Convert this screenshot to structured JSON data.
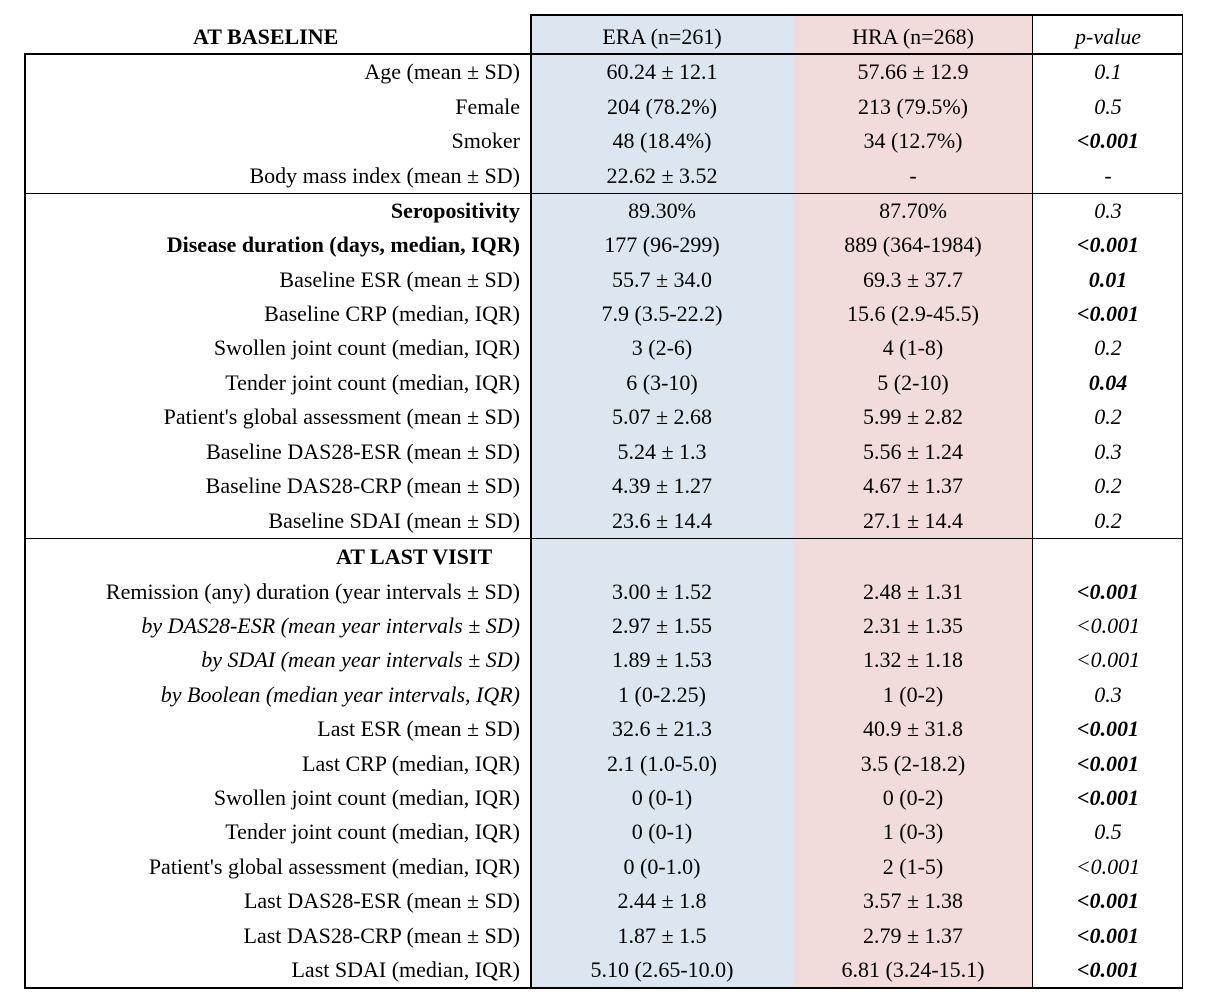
{
  "header": {
    "section": "AT BASELINE",
    "era": "ERA (n=261)",
    "hra": "HRA (n=268)",
    "pvalue": "p-value"
  },
  "rows": [
    {
      "label": "Age (mean ± SD)",
      "era": "60.24 ± 12.1",
      "hra": "57.66 ± 12.9",
      "p": "0.1",
      "p_bold": false
    },
    {
      "label": "Female",
      "era": "204 (78.2%)",
      "hra": "213 (79.5%)",
      "p": "0.5",
      "p_bold": false
    },
    {
      "label": "Smoker",
      "era": "48 (18.4%)",
      "hra": "34 (12.7%)",
      "p": "<0.001",
      "p_bold": true
    },
    {
      "label": "Body mass index (mean ± SD)",
      "era": "22.62 ± 3.52",
      "hra": "-",
      "p": "-",
      "p_bold": false
    },
    {
      "label": "Seropositivity",
      "label_bold": true,
      "era": "89.30%",
      "hra": "87.70%",
      "p": "0.3",
      "p_bold": false
    },
    {
      "label": "Disease duration (days, median, IQR)",
      "label_bold": true,
      "era": "177 (96-299)",
      "hra": "889 (364-1984)",
      "p": "<0.001",
      "p_bold": true
    },
    {
      "label": "Baseline ESR  (mean ± SD)",
      "era": "55.7 ± 34.0",
      "hra": "69.3 ± 37.7",
      "p": "0.01",
      "p_bold": true
    },
    {
      "label": "Baseline CRP (median, IQR)",
      "era": "7.9 (3.5-22.2)",
      "hra": "15.6 (2.9-45.5)",
      "p": "<0.001",
      "p_bold": true
    },
    {
      "label": "Swollen joint count (median, IQR)",
      "era": "3 (2-6)",
      "hra": "4 (1-8)",
      "p": "0.2",
      "p_bold": false
    },
    {
      "label": "Tender joint count (median, IQR)",
      "era": "6 (3-10)",
      "hra": "5 (2-10)",
      "p": "0.04",
      "p_bold": true
    },
    {
      "label": "Patient's global assessment (mean ± SD)",
      "era": "5.07 ± 2.68",
      "hra": "5.99 ± 2.82",
      "p": "0.2",
      "p_bold": false
    },
    {
      "label": "Baseline DAS28-ESR (mean ± SD)",
      "era": "5.24 ± 1.3",
      "hra": "5.56 ± 1.24",
      "p": "0.3",
      "p_bold": false
    },
    {
      "label": "Baseline DAS28-CRP (mean ± SD)",
      "era": "4.39 ± 1.27",
      "hra": "4.67 ± 1.37",
      "p": "0.2",
      "p_bold": false
    },
    {
      "label": "Baseline SDAI (mean ± SD)",
      "era": "23.6 ± 14.4",
      "hra": "27.1 ± 14.4",
      "p": "0.2",
      "p_bold": false
    },
    {
      "label": "AT LAST VISIT",
      "label_bold": true,
      "era": "",
      "hra": "",
      "p": "",
      "p_bold": false
    },
    {
      "label": "Remission (any) duration (year intervals ± SD)",
      "era": "3.00 ± 1.52",
      "hra": "2.48 ± 1.31",
      "p": "<0.001",
      "p_bold": true
    },
    {
      "label": "by DAS28-ESR (mean year intervals ± SD)",
      "label_italic": true,
      "era": "2.97 ± 1.55",
      "hra": "2.31 ± 1.35",
      "p": "<0.001",
      "p_bold": false
    },
    {
      "label": "by SDAI (mean year intervals ± SD)",
      "label_italic": true,
      "era": "1.89 ± 1.53",
      "hra": "1.32 ± 1.18",
      "p": "<0.001",
      "p_bold": false
    },
    {
      "label": "by Boolean (median year intervals, IQR)",
      "label_italic": true,
      "era": "1 (0-2.25)",
      "hra": "1 (0-2)",
      "p": "0.3",
      "p_bold": false
    },
    {
      "label": "Last ESR  (mean ± SD)",
      "era": "32.6 ± 21.3",
      "hra": "40.9 ± 31.8",
      "p": "<0.001",
      "p_bold": true
    },
    {
      "label": "Last CRP (median, IQR)",
      "era": "2.1 (1.0-5.0)",
      "hra": "3.5 (2-18.2)",
      "p": "<0.001",
      "p_bold": true
    },
    {
      "label": "Swollen joint count (median, IQR)",
      "era": "0 (0-1)",
      "hra": "0 (0-2)",
      "p": "<0.001",
      "p_bold": true
    },
    {
      "label": "Tender joint count (median, IQR)",
      "era": "0 (0-1)",
      "hra": "1 (0-3)",
      "p": "0.5",
      "p_bold": false
    },
    {
      "label": "Patient's global assessment (median, IQR)",
      "era": "0 (0-1.0)",
      "hra": "2 (1-5)",
      "p": "<0.001",
      "p_bold": false
    },
    {
      "label": "Last DAS28-ESR (mean ± SD)",
      "era": "2.44 ± 1.8",
      "hra": "3.57 ± 1.38",
      "p": "<0.001",
      "p_bold": true
    },
    {
      "label": "Last DAS28-CRP (mean ± SD)",
      "era": "1.87 ± 1.5",
      "hra": "2.79 ± 1.37",
      "p": "<0.001",
      "p_bold": true
    },
    {
      "label": "Last SDAI (median, IQR)",
      "era": "5.10 (2.65-10.0)",
      "hra": "6.81 (3.24-15.1)",
      "p": "<0.001",
      "p_bold": true
    }
  ]
}
